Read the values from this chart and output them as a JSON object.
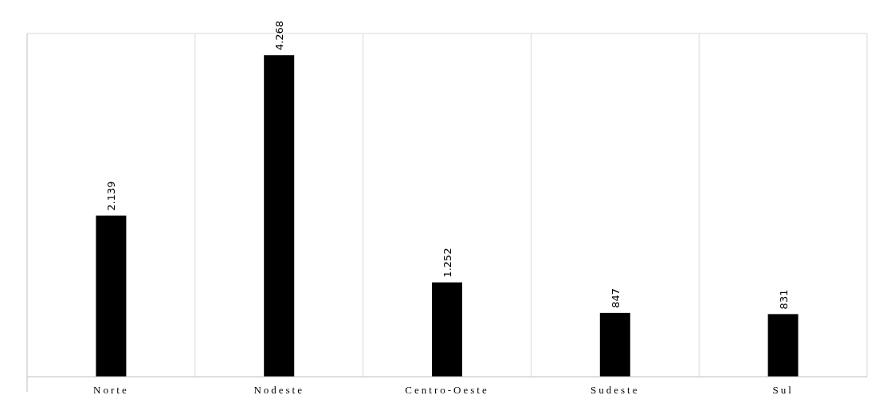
{
  "chart_data": {
    "type": "bar",
    "categories": [
      "Norte",
      "Nodeste",
      "Centro-Oeste",
      "Sudeste",
      "Sul"
    ],
    "values": [
      2139,
      4268,
      1252,
      847,
      831
    ],
    "value_labels": [
      "2.139",
      "4.268",
      "1.252",
      "847",
      "831"
    ],
    "color": "#000000",
    "grid": "x"
  }
}
